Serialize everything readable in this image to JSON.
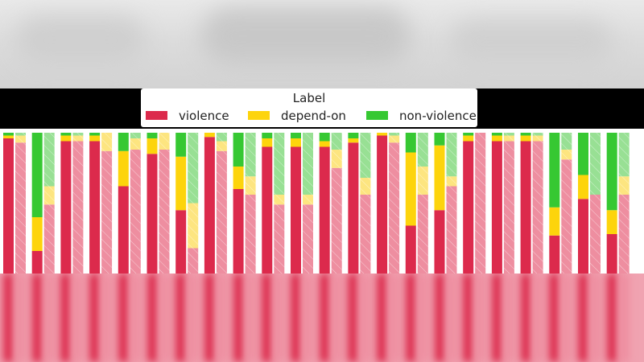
{
  "legend": {
    "title": "Label",
    "items": [
      {
        "label": "violence",
        "color": "#dc2a4c"
      },
      {
        "label": "depend-on",
        "color": "#fdd40c"
      },
      {
        "label": "non-violence",
        "color": "#36c832"
      }
    ]
  },
  "chart_data": {
    "type": "bar",
    "stacked": true,
    "normalized": true,
    "ylim": [
      0,
      1
    ],
    "colors": {
      "violence": "#dc2a4c",
      "depend-on": "#fdd40c",
      "non-violence": "#36c832"
    },
    "hatched_colors": {
      "violence": "#ee8ea0",
      "depend-on": "#fde580",
      "non-violence": "#98e094"
    },
    "pairs": [
      {
        "solid": [
          0.96,
          0.02,
          0.02
        ],
        "hatched": [
          0.93,
          0.05,
          0.02
        ]
      },
      {
        "solid": [
          0.16,
          0.24,
          0.6
        ],
        "hatched": [
          0.49,
          0.13,
          0.38
        ]
      },
      {
        "solid": [
          0.94,
          0.04,
          0.02
        ],
        "hatched": [
          0.94,
          0.04,
          0.02
        ]
      },
      {
        "solid": [
          0.94,
          0.04,
          0.02
        ],
        "hatched": [
          0.87,
          0.13,
          0.0
        ]
      },
      {
        "solid": [
          0.62,
          0.25,
          0.13
        ],
        "hatched": [
          0.88,
          0.08,
          0.04
        ]
      },
      {
        "solid": [
          0.85,
          0.11,
          0.04
        ],
        "hatched": [
          0.88,
          0.12,
          0.0
        ]
      },
      {
        "solid": [
          0.45,
          0.38,
          0.17
        ],
        "hatched": [
          0.18,
          0.32,
          0.5
        ]
      },
      {
        "solid": [
          0.97,
          0.03,
          0.0
        ],
        "hatched": [
          0.87,
          0.07,
          0.06
        ]
      },
      {
        "solid": [
          0.6,
          0.16,
          0.24
        ],
        "hatched": [
          0.56,
          0.13,
          0.31
        ]
      },
      {
        "solid": [
          0.9,
          0.06,
          0.04
        ],
        "hatched": [
          0.49,
          0.07,
          0.44
        ]
      },
      {
        "solid": [
          0.9,
          0.06,
          0.04
        ],
        "hatched": [
          0.49,
          0.07,
          0.44
        ]
      },
      {
        "solid": [
          0.9,
          0.04,
          0.06
        ],
        "hatched": [
          0.75,
          0.13,
          0.12
        ]
      },
      {
        "solid": [
          0.93,
          0.03,
          0.04
        ],
        "hatched": [
          0.56,
          0.12,
          0.32
        ]
      },
      {
        "solid": [
          0.98,
          0.02,
          0.0
        ],
        "hatched": [
          0.93,
          0.05,
          0.02
        ]
      },
      {
        "solid": [
          0.34,
          0.52,
          0.14
        ],
        "hatched": [
          0.56,
          0.2,
          0.24
        ]
      },
      {
        "solid": [
          0.45,
          0.46,
          0.09
        ],
        "hatched": [
          0.62,
          0.07,
          0.31
        ]
      },
      {
        "solid": [
          0.94,
          0.04,
          0.02
        ],
        "hatched": [
          1.0,
          0.0,
          0.0
        ]
      },
      {
        "solid": [
          0.94,
          0.04,
          0.02
        ],
        "hatched": [
          0.94,
          0.04,
          0.02
        ]
      },
      {
        "solid": [
          0.94,
          0.04,
          0.02
        ],
        "hatched": [
          0.94,
          0.04,
          0.02
        ]
      },
      {
        "solid": [
          0.27,
          0.2,
          0.53
        ],
        "hatched": [
          0.81,
          0.07,
          0.12
        ]
      },
      {
        "solid": [
          0.53,
          0.17,
          0.3
        ],
        "hatched": [
          0.56,
          0.0,
          0.44
        ]
      },
      {
        "solid": [
          0.28,
          0.17,
          0.55
        ],
        "hatched": [
          0.56,
          0.13,
          0.31
        ]
      }
    ]
  }
}
